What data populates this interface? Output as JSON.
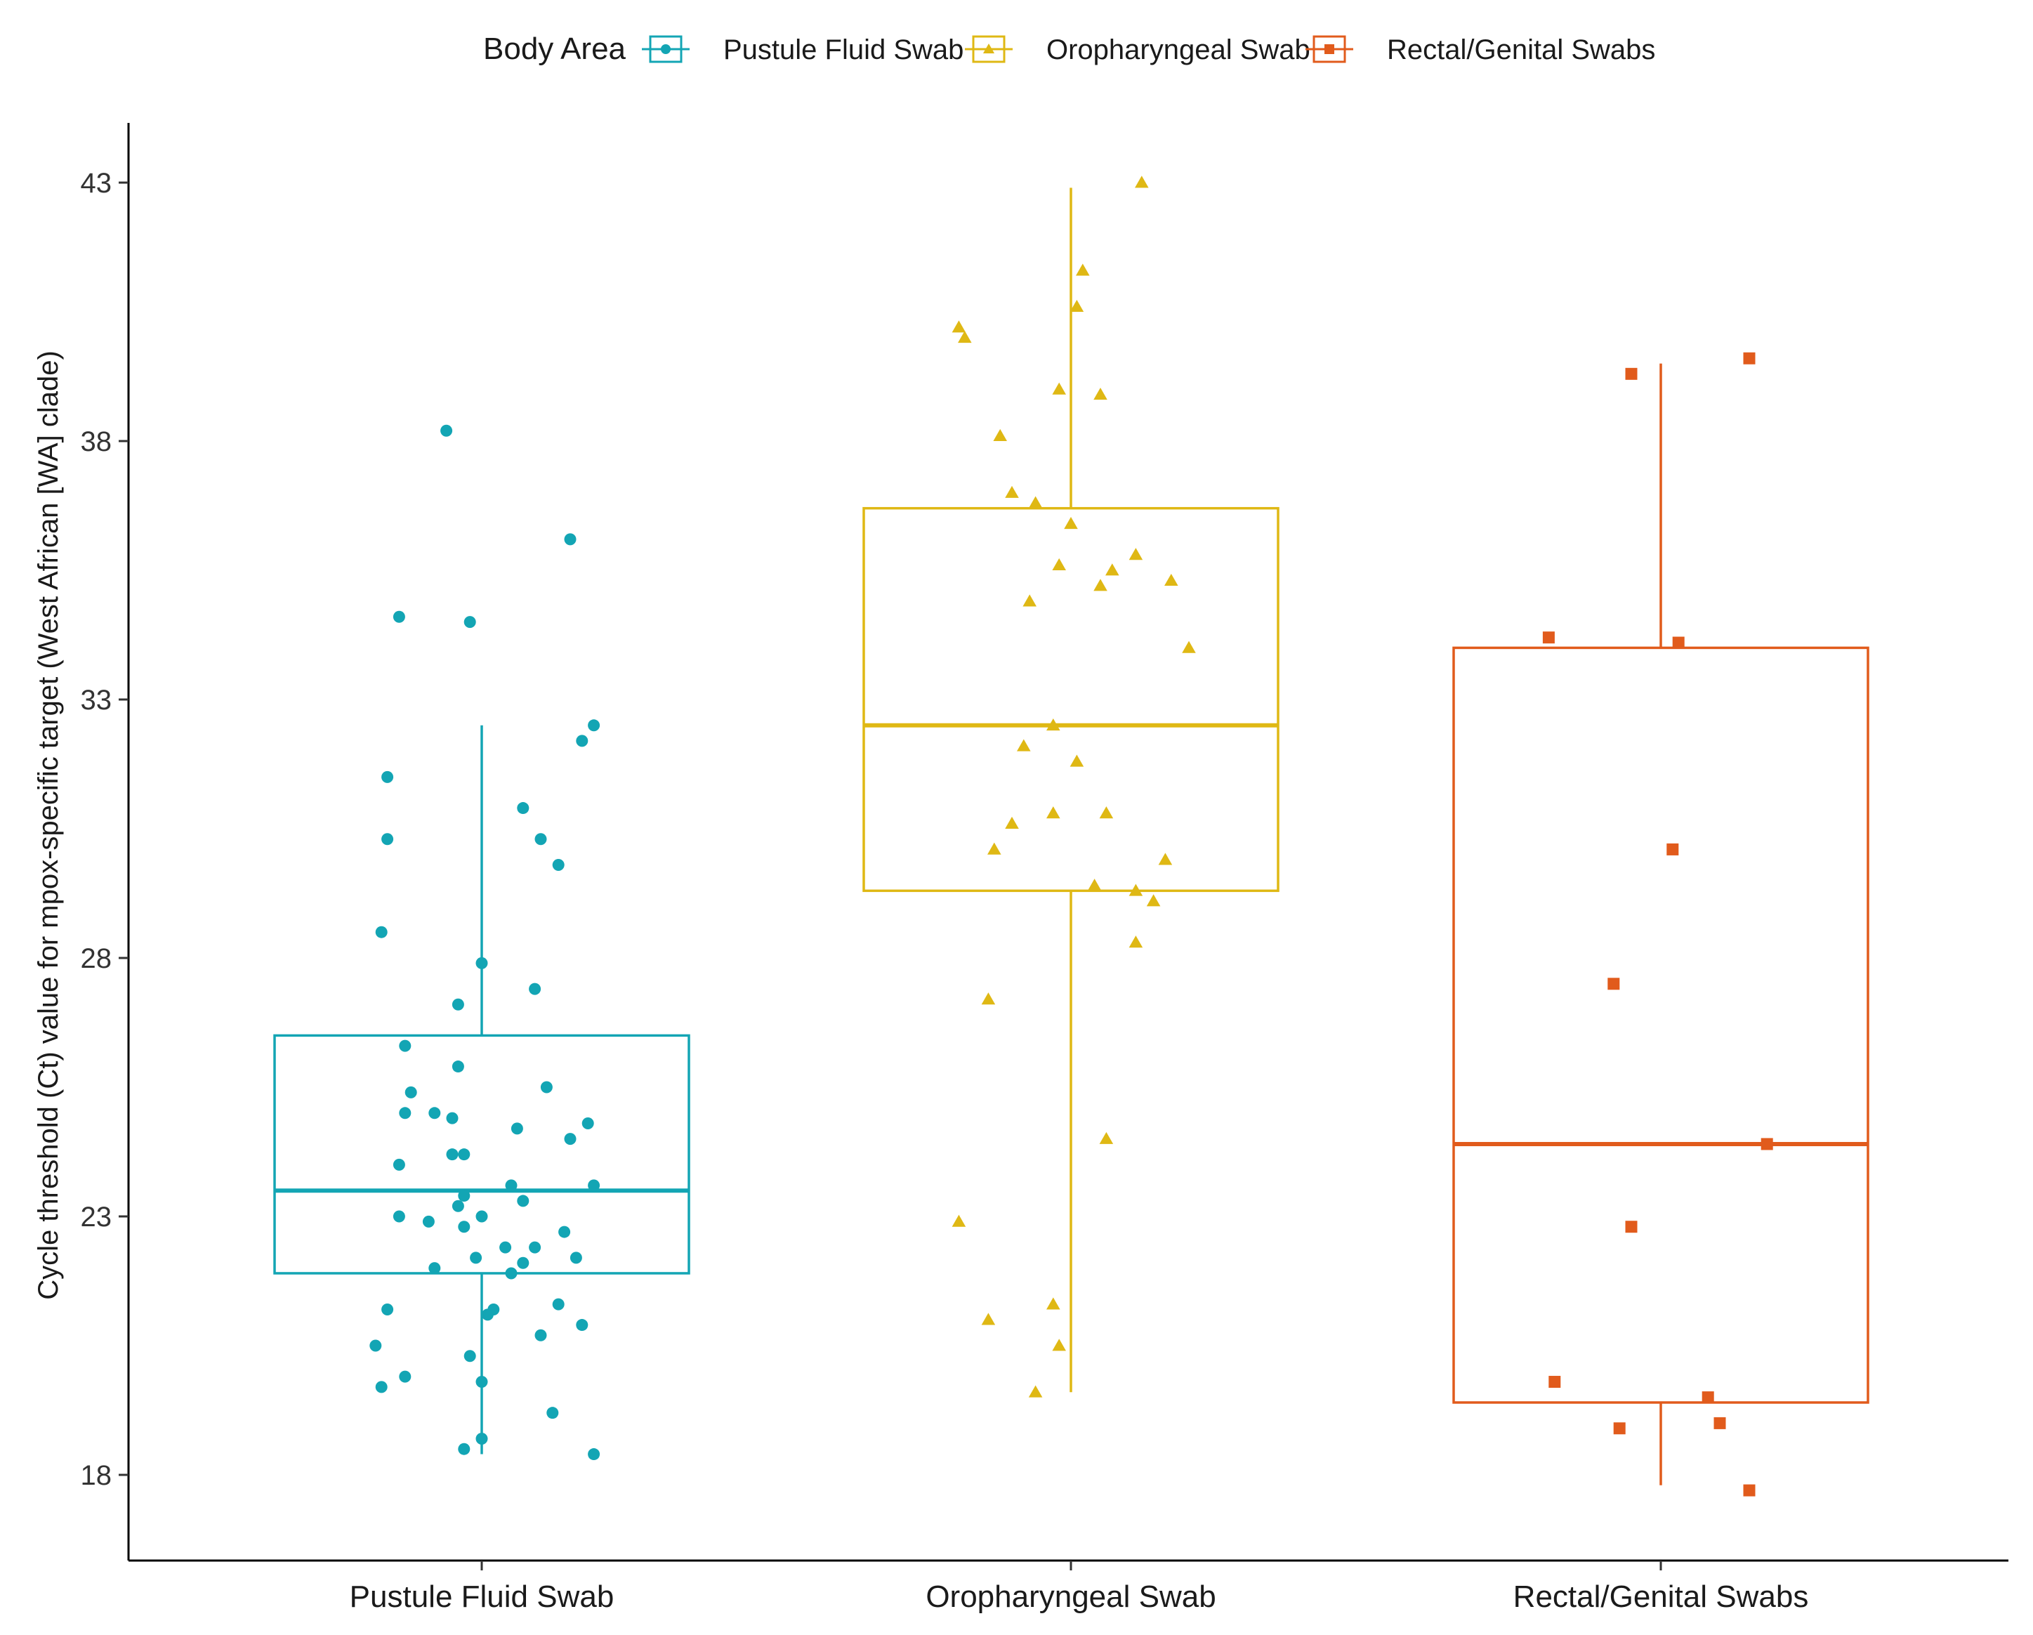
{
  "chart_data": {
    "type": "box",
    "title": "",
    "xlabel": "",
    "ylabel": "Cycle threshold (Ct) value for mpox-specific target (West African [WA] clade)",
    "ylim": [
      16.5,
      44.2
    ],
    "yticks": [
      18,
      23,
      28,
      33,
      38,
      43
    ],
    "grid": false,
    "legend": {
      "title": "Body Area",
      "position": "top",
      "entries": [
        "Pustule Fluid Swab",
        "Oropharyngeal Swab",
        "Rectal/Genital Swabs"
      ]
    },
    "categories": [
      "Pustule Fluid Swab",
      "Oropharyngeal Swab",
      "Rectal/Genital Swabs"
    ],
    "series": [
      {
        "name": "Pustule Fluid Swab",
        "color": "#13a5b4",
        "marker": "circle",
        "box": {
          "whisker_low": 18.4,
          "q1": 21.9,
          "median": 23.5,
          "q3": 26.5,
          "whisker_high": 32.5
        },
        "points": [
          [
            -0.06,
            38.2
          ],
          [
            0.15,
            36.1
          ],
          [
            -0.14,
            34.6
          ],
          [
            -0.02,
            34.5
          ],
          [
            0.19,
            32.5
          ],
          [
            0.17,
            32.2
          ],
          [
            -0.16,
            31.5
          ],
          [
            0.07,
            30.9
          ],
          [
            -0.16,
            30.3
          ],
          [
            0.1,
            30.3
          ],
          [
            0.13,
            29.8
          ],
          [
            -0.17,
            28.5
          ],
          [
            0.0,
            27.9
          ],
          [
            0.09,
            27.4
          ],
          [
            -0.04,
            27.1
          ],
          [
            -0.13,
            26.3
          ],
          [
            -0.04,
            25.9
          ],
          [
            0.11,
            25.5
          ],
          [
            -0.12,
            25.4
          ],
          [
            -0.13,
            25.0
          ],
          [
            -0.08,
            25.0
          ],
          [
            -0.05,
            24.9
          ],
          [
            0.06,
            24.7
          ],
          [
            0.18,
            24.8
          ],
          [
            0.15,
            24.5
          ],
          [
            -0.05,
            24.2
          ],
          [
            -0.03,
            24.2
          ],
          [
            -0.14,
            24.0
          ],
          [
            0.19,
            23.6
          ],
          [
            0.05,
            23.6
          ],
          [
            -0.03,
            23.4
          ],
          [
            0.07,
            23.3
          ],
          [
            -0.04,
            23.2
          ],
          [
            -0.14,
            23.0
          ],
          [
            -0.09,
            22.9
          ],
          [
            0.0,
            23.0
          ],
          [
            -0.03,
            22.8
          ],
          [
            0.14,
            22.7
          ],
          [
            0.04,
            22.4
          ],
          [
            0.09,
            22.4
          ],
          [
            -0.01,
            22.2
          ],
          [
            0.16,
            22.2
          ],
          [
            0.07,
            22.1
          ],
          [
            -0.08,
            22.0
          ],
          [
            0.05,
            21.9
          ],
          [
            0.13,
            21.3
          ],
          [
            -0.16,
            21.2
          ],
          [
            0.02,
            21.2
          ],
          [
            0.01,
            21.1
          ],
          [
            0.17,
            20.9
          ],
          [
            0.1,
            20.7
          ],
          [
            -0.18,
            20.5
          ],
          [
            -0.02,
            20.3
          ],
          [
            -0.13,
            19.9
          ],
          [
            0.0,
            19.8
          ],
          [
            -0.17,
            19.7
          ],
          [
            0.12,
            19.2
          ],
          [
            0.0,
            18.7
          ],
          [
            -0.03,
            18.5
          ],
          [
            0.19,
            18.4
          ]
        ]
      },
      {
        "name": "Oropharyngeal Swab",
        "color": "#dfb814",
        "marker": "triangle",
        "box": {
          "whisker_low": 19.6,
          "q1": 29.3,
          "median": 32.5,
          "q3": 36.7,
          "whisker_high": 42.9
        },
        "points": [
          [
            0.12,
            43.0
          ],
          [
            0.02,
            41.3
          ],
          [
            0.01,
            40.6
          ],
          [
            -0.19,
            40.2
          ],
          [
            -0.18,
            40.0
          ],
          [
            -0.02,
            39.0
          ],
          [
            0.05,
            38.9
          ],
          [
            -0.12,
            38.1
          ],
          [
            -0.1,
            37.0
          ],
          [
            -0.06,
            36.8
          ],
          [
            0.0,
            36.4
          ],
          [
            0.11,
            35.8
          ],
          [
            -0.02,
            35.6
          ],
          [
            0.07,
            35.5
          ],
          [
            0.17,
            35.3
          ],
          [
            0.05,
            35.2
          ],
          [
            -0.07,
            34.9
          ],
          [
            0.2,
            34.0
          ],
          [
            -0.03,
            32.5
          ],
          [
            -0.08,
            32.1
          ],
          [
            0.01,
            31.8
          ],
          [
            -0.03,
            30.8
          ],
          [
            0.06,
            30.8
          ],
          [
            -0.1,
            30.6
          ],
          [
            -0.13,
            30.1
          ],
          [
            0.16,
            29.9
          ],
          [
            0.04,
            29.4
          ],
          [
            0.11,
            29.3
          ],
          [
            0.14,
            29.1
          ],
          [
            0.11,
            28.3
          ],
          [
            -0.14,
            27.2
          ],
          [
            0.06,
            24.5
          ],
          [
            -0.19,
            22.9
          ],
          [
            -0.03,
            21.3
          ],
          [
            -0.14,
            21.0
          ],
          [
            -0.02,
            20.5
          ],
          [
            -0.06,
            19.6
          ]
        ]
      },
      {
        "name": "Rectal/Genital Swabs",
        "color": "#e15b1c",
        "marker": "square",
        "box": {
          "whisker_low": 17.8,
          "q1": 19.4,
          "median": 24.4,
          "q3": 34.0,
          "whisker_high": 39.5
        },
        "points": [
          [
            0.15,
            39.6
          ],
          [
            -0.05,
            39.3
          ],
          [
            -0.19,
            34.2
          ],
          [
            0.03,
            34.1
          ],
          [
            0.02,
            30.1
          ],
          [
            -0.08,
            27.5
          ],
          [
            0.18,
            24.4
          ],
          [
            -0.05,
            22.8
          ],
          [
            -0.18,
            19.8
          ],
          [
            0.08,
            19.5
          ],
          [
            -0.07,
            18.9
          ],
          [
            0.1,
            19.0
          ],
          [
            0.15,
            17.7
          ]
        ]
      }
    ]
  }
}
